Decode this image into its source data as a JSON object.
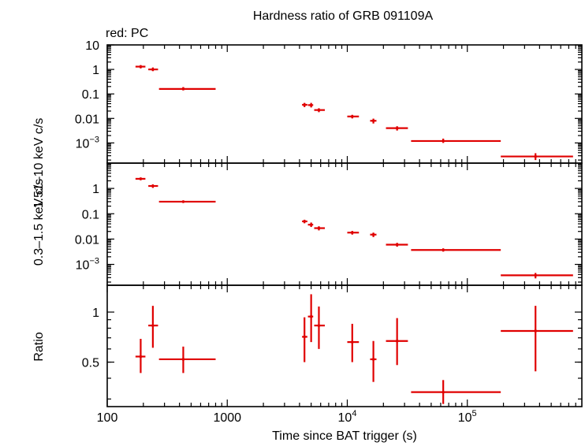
{
  "chart_data": {
    "type": "scatter",
    "title": "Hardness ratio of GRB 091109A",
    "annotation": "red: PC",
    "xlabel": "Time since BAT trigger (s)",
    "xscale": "log",
    "xlim": [
      100,
      900000
    ],
    "x_ticks": [
      {
        "value": 100,
        "label": "100",
        "exp": ""
      },
      {
        "value": 1000,
        "label": "1000",
        "exp": ""
      },
      {
        "value": 10000,
        "label": "10",
        "exp": "4"
      },
      {
        "value": 100000,
        "label": "10",
        "exp": "5"
      }
    ],
    "color": "#e00000",
    "panels": [
      {
        "id": "hard",
        "ylabel": "1.51–10 keV c/s",
        "yscale": "log",
        "ylim": [
          0.00015,
          10
        ],
        "y_ticks": [
          {
            "value": 10,
            "label": "10",
            "exp": ""
          },
          {
            "value": 1,
            "label": "1",
            "exp": ""
          },
          {
            "value": 0.1,
            "label": "0.1",
            "exp": ""
          },
          {
            "value": 0.01,
            "label": "0.01",
            "exp": ""
          },
          {
            "value": 0.001,
            "label": "10",
            "exp": "−3"
          }
        ],
        "points": [
          {
            "x": 190,
            "xlo": 172,
            "xhi": 208,
            "y": 1.3,
            "ylo": 1.1,
            "yhi": 1.5
          },
          {
            "x": 240,
            "xlo": 220,
            "xhi": 265,
            "y": 1.0,
            "ylo": 0.85,
            "yhi": 1.2
          },
          {
            "x": 430,
            "xlo": 270,
            "xhi": 800,
            "y": 0.16,
            "ylo": 0.14,
            "yhi": 0.19
          },
          {
            "x": 4400,
            "xlo": 4200,
            "xhi": 4650,
            "y": 0.036,
            "ylo": 0.029,
            "yhi": 0.043
          },
          {
            "x": 5000,
            "xlo": 4700,
            "xhi": 5200,
            "y": 0.035,
            "ylo": 0.028,
            "yhi": 0.043
          },
          {
            "x": 5800,
            "xlo": 5300,
            "xhi": 6500,
            "y": 0.022,
            "ylo": 0.018,
            "yhi": 0.026
          },
          {
            "x": 11000,
            "xlo": 10000,
            "xhi": 12500,
            "y": 0.012,
            "ylo": 0.01,
            "yhi": 0.014
          },
          {
            "x": 16500,
            "xlo": 15500,
            "xhi": 17500,
            "y": 0.008,
            "ylo": 0.0062,
            "yhi": 0.0098
          },
          {
            "x": 26000,
            "xlo": 21000,
            "xhi": 32000,
            "y": 0.004,
            "ylo": 0.0032,
            "yhi": 0.0048
          },
          {
            "x": 63000,
            "xlo": 34000,
            "xhi": 190000,
            "y": 0.0012,
            "ylo": 0.001,
            "yhi": 0.0015
          },
          {
            "x": 370000,
            "xlo": 190000,
            "xhi": 760000,
            "y": 0.00028,
            "ylo": 0.0002,
            "yhi": 0.00038
          }
        ]
      },
      {
        "id": "soft",
        "ylabel": "0.3–1.5 keV c/s",
        "yscale": "log",
        "ylim": [
          0.00015,
          10
        ],
        "y_ticks": [
          {
            "value": 1,
            "label": "1",
            "exp": ""
          },
          {
            "value": 0.1,
            "label": "0.1",
            "exp": ""
          },
          {
            "value": 0.01,
            "label": "0.01",
            "exp": ""
          },
          {
            "value": 0.001,
            "label": "10",
            "exp": "−3"
          }
        ],
        "points": [
          {
            "x": 190,
            "xlo": 172,
            "xhi": 208,
            "y": 2.4,
            "ylo": 2.1,
            "yhi": 2.7
          },
          {
            "x": 240,
            "xlo": 220,
            "xhi": 265,
            "y": 1.25,
            "ylo": 1.05,
            "yhi": 1.45
          },
          {
            "x": 430,
            "xlo": 270,
            "xhi": 800,
            "y": 0.3,
            "ylo": 0.27,
            "yhi": 0.33
          },
          {
            "x": 4400,
            "xlo": 4200,
            "xhi": 4650,
            "y": 0.05,
            "ylo": 0.042,
            "yhi": 0.058
          },
          {
            "x": 5000,
            "xlo": 4700,
            "xhi": 5200,
            "y": 0.037,
            "ylo": 0.03,
            "yhi": 0.045
          },
          {
            "x": 5800,
            "xlo": 5300,
            "xhi": 6500,
            "y": 0.027,
            "ylo": 0.022,
            "yhi": 0.032
          },
          {
            "x": 11000,
            "xlo": 10000,
            "xhi": 12500,
            "y": 0.018,
            "ylo": 0.015,
            "yhi": 0.021
          },
          {
            "x": 16500,
            "xlo": 15500,
            "xhi": 17500,
            "y": 0.015,
            "ylo": 0.012,
            "yhi": 0.018
          },
          {
            "x": 26000,
            "xlo": 21000,
            "xhi": 32000,
            "y": 0.006,
            "ylo": 0.005,
            "yhi": 0.0071
          },
          {
            "x": 63000,
            "xlo": 34000,
            "xhi": 190000,
            "y": 0.0037,
            "ylo": 0.0032,
            "yhi": 0.0043
          },
          {
            "x": 370000,
            "xlo": 190000,
            "xhi": 760000,
            "y": 0.00037,
            "ylo": 0.00028,
            "yhi": 0.00046
          }
        ]
      },
      {
        "id": "ratio",
        "ylabel": "Ratio",
        "yscale": "log",
        "ylim": [
          0.27,
          1.45
        ],
        "y_ticks": [
          {
            "value": 1,
            "label": "1",
            "exp": ""
          },
          {
            "value": 0.5,
            "label": "0.5",
            "exp": ""
          }
        ],
        "points": [
          {
            "x": 190,
            "xlo": 172,
            "xhi": 208,
            "y": 0.54,
            "ylo": 0.43,
            "yhi": 0.69
          },
          {
            "x": 240,
            "xlo": 220,
            "xhi": 265,
            "y": 0.83,
            "ylo": 0.61,
            "yhi": 1.09
          },
          {
            "x": 430,
            "xlo": 270,
            "xhi": 800,
            "y": 0.52,
            "ylo": 0.43,
            "yhi": 0.62
          },
          {
            "x": 4400,
            "xlo": 4200,
            "xhi": 4650,
            "y": 0.71,
            "ylo": 0.5,
            "yhi": 0.93
          },
          {
            "x": 5000,
            "xlo": 4700,
            "xhi": 5200,
            "y": 0.94,
            "ylo": 0.66,
            "yhi": 1.28
          },
          {
            "x": 5800,
            "xlo": 5300,
            "xhi": 6500,
            "y": 0.83,
            "ylo": 0.6,
            "yhi": 1.08
          },
          {
            "x": 11000,
            "xlo": 10000,
            "xhi": 12500,
            "y": 0.66,
            "ylo": 0.5,
            "yhi": 0.85
          },
          {
            "x": 16500,
            "xlo": 15500,
            "xhi": 17500,
            "y": 0.52,
            "ylo": 0.38,
            "yhi": 0.67
          },
          {
            "x": 26000,
            "xlo": 21000,
            "xhi": 32000,
            "y": 0.67,
            "ylo": 0.48,
            "yhi": 0.92
          },
          {
            "x": 63000,
            "xlo": 34000,
            "xhi": 190000,
            "y": 0.33,
            "ylo": 0.28,
            "yhi": 0.39
          },
          {
            "x": 370000,
            "xlo": 190000,
            "xhi": 760000,
            "y": 0.77,
            "ylo": 0.44,
            "yhi": 1.09
          }
        ]
      }
    ]
  }
}
